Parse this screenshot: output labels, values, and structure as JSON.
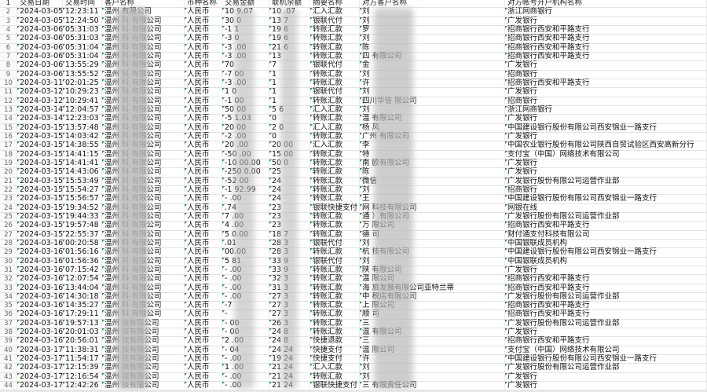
{
  "headers": [
    "交易日期",
    "交易时间",
    "客户名称",
    "币种名称",
    "交易金额",
    "联机余额",
    "摘要名称",
    "对方客户名称",
    "对方帐号开户机构名称"
  ],
  "rows": [
    [
      "2024-03-05",
      "12:23:11",
      "温州    有限公司",
      "人民币",
      "10   9.07",
      "10   .07",
      "汇入汇款",
      "刘",
      "浙江网商银行"
    ],
    [
      "2024-03-05",
      "12:24:50",
      "温州   科 有限公司",
      "人民币",
      "30   0",
      "13   7",
      "银联代付",
      "刘",
      "广发银行"
    ],
    [
      "2024-03-06",
      "05:31:03",
      "温州   科 有限公司",
      "人民币",
      "-1   1",
      "19   6",
      "转账汇款",
      "罗",
      "招商银行西安和平路支行"
    ],
    [
      "2024-03-06",
      "05:31:03",
      "温州   科 有限公司",
      "人民币",
      "-3   0",
      "19   6",
      "转账汇款",
      "刘",
      "招商银行西安和平路支行"
    ],
    [
      "2024-03-06",
      "05:31:04",
      "温州   科 有限公司",
      "人民币",
      "-3   .00",
      "21   6",
      "转账汇款",
      "陈",
      "招商银行西安和平路支行"
    ],
    [
      "2024-03-06",
      "05:31:04",
      "温州   科 有限公司",
      "人民币",
      "-3   .00",
      "13",
      "转账汇款",
      "四           有限公司",
      "招商银行西安和平路支行"
    ],
    [
      "2024-03-06",
      "13:55:29",
      "温州   科 有限公司",
      "人民币",
      "70",
      "7",
      "银联代付",
      "金",
      "广发银行"
    ],
    [
      "2024-03-06",
      "13:55:52",
      "温州   科 有限公司",
      "人民币",
      "-7   00",
      "1",
      "转账汇款",
      "刘",
      "招商银行"
    ],
    [
      "2024-03-11",
      "02:01:25",
      "温州   科 有限公司",
      "人民币",
      "-3   .00",
      "1",
      "转账汇款",
      "许",
      "招商银行西安和平路支行"
    ],
    [
      "2024-03-12",
      "10:29:23",
      "温州   科 有限公司",
      "人民币",
      "1   0",
      "1",
      "银联代付",
      "刘",
      "广发银行"
    ],
    [
      "2024-03-12",
      "10:29:41",
      "温州   科 有限公司",
      "人民币",
      "-1   00",
      "1",
      "转账汇款",
      "四川华信       限公司",
      "招商银行"
    ],
    [
      "2024-03-14",
      "12:04:57",
      "温州   科 有限公司",
      "人民币",
      "50   00",
      "5   6",
      "汇入汇款",
      "刘",
      "浙江网商银行"
    ],
    [
      "2024-03-14",
      "12:23:03",
      "温州   科 有限公司",
      "人民币",
      "-5   1.03",
      "0",
      "转账汇款",
      "温        有限公司",
      "广发银行"
    ],
    [
      "2024-03-15",
      "13:57:48",
      "温州   科 有限公司",
      "人民币",
      "20   00",
      "2   0",
      "汇入汇款",
      "杨 风",
      "中国建设银行股份有限公司西安锦业一路支行"
    ],
    [
      "2024-03-15",
      "14:03:42",
      "温州   科 有限公司",
      "人民币",
      "-2   .00",
      "0",
      "转账汇款",
      "广州     有限公司",
      "广发银行"
    ],
    [
      "2024-03-15",
      "14:38:55",
      "温州   科 有限公司",
      "人民币",
      "20   .00",
      "20   00",
      "汇入汇款",
      "李",
      "中国农业银行股份有限公司陕西自贸试验区西安高新分行"
    ],
    [
      "2024-03-15",
      "14:41:15",
      "温州   科 有限公司",
      "人民币",
      "-50   .00",
      "15   00",
      "转账汇款",
      "特",
      "支付宝（中国）网络技术有限公司"
    ],
    [
      "2024-03-15",
      "14:41:41",
      "温州   科 有限公司",
      "人民币",
      "-10  00.00",
      "50   0",
      "转账汇款",
      "南      欧有限公司",
      "广发银行"
    ],
    [
      "2024-03-15",
      "14:43:06",
      "温州   科 有限公司",
      "人民币",
      "-250  0.00",
      "25",
      "转账汇款",
      "陈",
      "广发银行"
    ],
    [
      "2024-03-15",
      "15:53:49",
      "温州   科 有限公司",
      "人民币",
      "-52   00",
      "24",
      "转账汇款",
      "微信",
      "广发银行股份有限公司运营作业部"
    ],
    [
      "2024-03-15",
      "15:54:27",
      "温州   科 有限公司",
      "人民币",
      "-1  92.99",
      "24",
      "转账汇款",
      "刘",
      "招商银行"
    ],
    [
      "2024-03-15",
      "15:56:57",
      "温州   科 有限公司",
      "人民币",
      "-   .00",
      "24",
      "转账汇款",
      "王",
      "中国建设银行股份有限公司西安锦业一路支行"
    ],
    [
      "2024-03-15",
      "19:34:52",
      "温州   科 有限公司",
      "人民币",
      "   .74",
      "23",
      "银联快捷支付",
      "网        科技有限公司",
      "网银在线"
    ],
    [
      "2024-03-15",
      "19:44:33",
      "温州   科 有限公司",
      "人民币",
      "7   .00",
      "23",
      "转账汇款",
      "通        ）有限公司",
      "广发银行股份有限公司运营作业部"
    ],
    [
      "2024-03-15",
      "19:57:48",
      "温州   科 有限公司",
      "人民币",
      "4   .00",
      "23",
      "转账汇款",
      "万       限公司",
      "招商银行西安和平路支行"
    ],
    [
      "2024-03-15",
      "22:55:37",
      "温州   科 有限公司",
      "人民币",
      "5  0.00",
      "18   7",
      "转账汇款",
      "德      司",
      "财付通支付科技有限公司"
    ],
    [
      "2024-03-16",
      "00:20:58",
      "温州   科 有限公司",
      "人民币",
      "   .01",
      "28   3",
      "银联代付",
      "刘",
      "中国银联成员机构"
    ],
    [
      "2024-03-16",
      "01:56:16",
      "温州   科 有限公司",
      "人民币",
      "   00.00",
      "28   3",
      "转账汇款",
      "杭       技有限公司",
      "中国建设银行股份有限公司西安锦业一路支行"
    ],
    [
      "2024-03-16",
      "01:56:36",
      "温州   科 有限公司",
      "人民币",
      "5   81",
      "33   9",
      "银联代付",
      "刘",
      "中国银联成员机构"
    ],
    [
      "2024-03-16",
      "07:15:42",
      "温州   科 有限公司",
      "人民币",
      "-   .00",
      "33   9",
      "转账汇款",
      "陕        有限公司",
      "广发银行"
    ],
    [
      "2024-03-16",
      "12:07:54",
      "温州   科 有限公司",
      "人民币",
      "-   .00",
      "32   3",
      "转账汇款",
      "温        限公司",
      "招商银行西安和平路支行"
    ],
    [
      "2024-03-16",
      "13:44:04",
      "温州   科 有限公司",
      "人民币",
      "-   .00",
      "31   3",
      "转账汇款",
      "海          旅发展有限公司亚特兰蒂",
      "招商银行西安和平路支行"
    ],
    [
      "2024-03-16",
      "14:30:18",
      "温州   科 有限公司",
      "人民币",
      "-   .00",
      "27   3",
      "转账汇款",
      "中           税店有限公司",
      "广发银行股份有限公司运营作业部"
    ],
    [
      "2024-03-16",
      "14:35:27",
      "温州   科 有限公司",
      "人民币",
      "-7",
      "27   3",
      "转账汇款",
      "上        限公司",
      "招商银行西安和平路支行"
    ],
    [
      "2024-03-16",
      "17:29:11",
      "温州   科 有限公司",
      "人民币",
      "-",
      "27   3",
      "转账汇款",
      "顺        司",
      "招商银行西安和平路支行"
    ],
    [
      "2024-03-16",
      "19:57:13",
      "温州   技有限公司",
      "人民币",
      "-   00",
      "26   3",
      "转账汇款",
      "三",
      "广发银行股份有限公司运营作业部"
    ],
    [
      "2024-03-16",
      "20:01:03",
      "温州   技有限公司",
      "人民币",
      "-   00",
      "24   8",
      "转账汇款",
      "温       有限公司",
      "广发银行"
    ],
    [
      "2024-03-16",
      "20:56:01",
      "温州   技有限公司",
      "人民币",
      "2   .00",
      "24   8",
      "快捷退款",
      "三",
      "招商银行西安和平路支行"
    ],
    [
      "2024-03-17",
      "11:38:31",
      "温州   技有限公司",
      "人民币",
      "-   04",
      "24   24",
      "快捷支付",
      "温        限公司",
      "支付宝（中国）网络技术有限公司"
    ],
    [
      "2024-03-17",
      "11:54:17",
      "温州   技有限公司",
      "人民币",
      "-   .00",
      "19   24",
      "快捷支付",
      "许",
      "中国建设银行股份有限公司西安锦业一路支行"
    ],
    [
      "2024-03-17",
      "12:15:39",
      "温州   技有限公司",
      "人民币",
      "1   .00",
      "21   24",
      "汇入汇款",
      "刘",
      "广发银行股份有限公司运营作业部"
    ],
    [
      "2024-03-17",
      "12:16:54",
      "温州   技有限公司",
      "人民币",
      "-   .00",
      "21   24",
      "转账汇款",
      "刘",
      "广发银行"
    ],
    [
      "2024-03-17",
      "12:42:26",
      "温州   技有限公司",
      "人民币",
      "-   .00",
      "21   24",
      "银联快捷支付",
      "三         有限责任公司",
      "广发银行"
    ]
  ]
}
